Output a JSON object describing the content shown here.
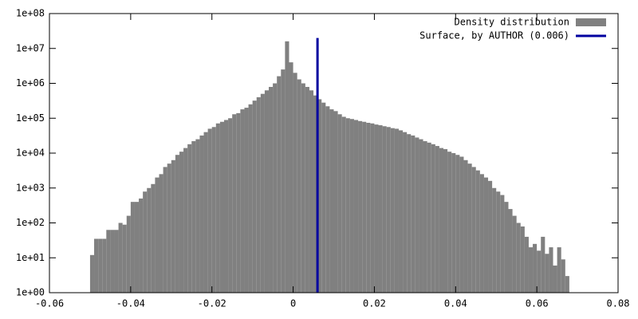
{
  "chart_data": {
    "type": "histogram",
    "log_y": true,
    "legend": "top-right",
    "xlim": [
      -0.06,
      0.08
    ],
    "ylim": [
      1,
      100000000
    ],
    "xticks": [
      -0.06,
      -0.04,
      -0.02,
      0,
      0.02,
      0.04,
      0.06,
      0.08
    ],
    "yticks": [
      {
        "value": 1,
        "label": "1e+00"
      },
      {
        "value": 10,
        "label": "1e+01"
      },
      {
        "value": 100,
        "label": "1e+02"
      },
      {
        "value": 1000,
        "label": "1e+03"
      },
      {
        "value": 10000,
        "label": "1e+04"
      },
      {
        "value": 100000,
        "label": "1e+05"
      },
      {
        "value": 1000000,
        "label": "1e+06"
      },
      {
        "value": 10000000,
        "label": "1e+07"
      },
      {
        "value": 100000000,
        "label": "1e+08"
      }
    ],
    "series": [
      {
        "name": "Density distribution",
        "type": "histogram",
        "color": "#808080",
        "bins": [
          -0.05,
          -0.049,
          -0.048,
          -0.047,
          -0.046,
          -0.045,
          -0.044,
          -0.043,
          -0.042,
          -0.041,
          -0.04,
          -0.039,
          -0.038,
          -0.037,
          -0.036,
          -0.035,
          -0.034,
          -0.033,
          -0.032,
          -0.031,
          -0.03,
          -0.029,
          -0.028,
          -0.027,
          -0.026,
          -0.025,
          -0.024,
          -0.023,
          -0.022,
          -0.021,
          -0.02,
          -0.019,
          -0.018,
          -0.017,
          -0.016,
          -0.015,
          -0.014,
          -0.013,
          -0.012,
          -0.011,
          -0.01,
          -0.009,
          -0.008,
          -0.007,
          -0.006,
          -0.005,
          -0.004,
          -0.003,
          -0.002,
          -0.001,
          0,
          0.001,
          0.002,
          0.003,
          0.004,
          0.005,
          0.006,
          0.007,
          0.008,
          0.009,
          0.01,
          0.011,
          0.012,
          0.013,
          0.014,
          0.015,
          0.016,
          0.017,
          0.018,
          0.019,
          0.02,
          0.021,
          0.022,
          0.023,
          0.024,
          0.025,
          0.026,
          0.027,
          0.028,
          0.029,
          0.03,
          0.031,
          0.032,
          0.033,
          0.034,
          0.035,
          0.036,
          0.037,
          0.038,
          0.039,
          0.04,
          0.041,
          0.042,
          0.043,
          0.044,
          0.045,
          0.046,
          0.047,
          0.048,
          0.049,
          0.05,
          0.051,
          0.052,
          0.053,
          0.054,
          0.055,
          0.056,
          0.057,
          0.058,
          0.059,
          0.06,
          0.061,
          0.062,
          0.063,
          0.064,
          0.065,
          0.066,
          0.067,
          0.068
        ],
        "counts": [
          12,
          35,
          35,
          35,
          63,
          63,
          63,
          100,
          89,
          160,
          400,
          400,
          500,
          790,
          1000,
          1300,
          2000,
          2500,
          4000,
          5000,
          6300,
          8900,
          11000,
          14000,
          18000,
          22000,
          25000,
          32000,
          40000,
          50000,
          56000,
          71000,
          79000,
          89000,
          100000,
          130000,
          140000,
          180000,
          200000,
          250000,
          320000,
          400000,
          500000,
          630000,
          790000,
          1000000,
          1600000,
          2500000,
          16000000,
          4000000,
          2000000,
          1300000,
          1000000,
          790000,
          630000,
          450000,
          350000,
          280000,
          220000,
          180000,
          160000,
          130000,
          110000,
          100000,
          95000,
          89000,
          83000,
          79000,
          74000,
          71000,
          66000,
          63000,
          59000,
          56000,
          52000,
          50000,
          45000,
          40000,
          35000,
          32000,
          28000,
          25000,
          22000,
          20000,
          18000,
          16000,
          14000,
          13000,
          11000,
          10000,
          8900,
          7900,
          6300,
          5000,
          4000,
          3200,
          2500,
          2000,
          1600,
          1000,
          790,
          630,
          400,
          250,
          160,
          100,
          79,
          40,
          20,
          25,
          16,
          40,
          13,
          20,
          6,
          20,
          9,
          3
        ]
      },
      {
        "name": "Surface, by AUTHOR (0.006)",
        "type": "line",
        "color": "#0000a0",
        "x": [
          0.006,
          0.006
        ],
        "values": [
          1,
          20000000
        ]
      }
    ]
  }
}
